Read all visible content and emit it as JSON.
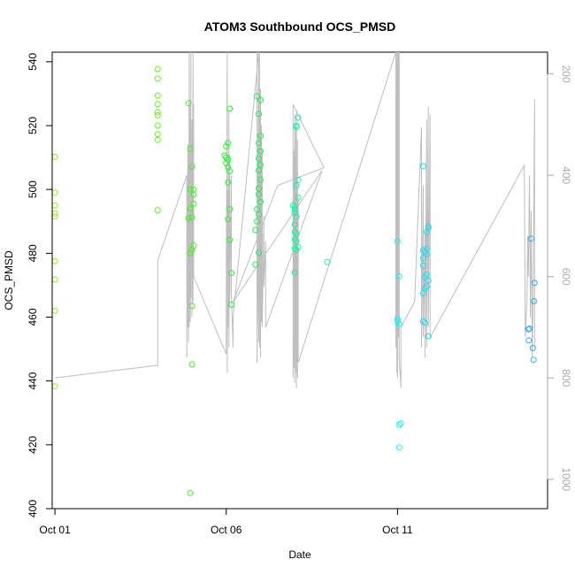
{
  "chart_data": {
    "type": "scatter",
    "title": "ATOM3 Southbound OCS_PMSD",
    "xlabel": "Date",
    "ylabel": "OCS_PMSD",
    "x_ticks": [
      {
        "day": 1,
        "label": "Oct 01"
      },
      {
        "day": 6,
        "label": "Oct 06"
      },
      {
        "day": 11,
        "label": "Oct 11"
      }
    ],
    "xlim": [
      0.92,
      15.38
    ],
    "ylim": [
      400,
      543
    ],
    "y_ticks": [
      400,
      420,
      440,
      460,
      480,
      500,
      520,
      540
    ],
    "y2_ticks": [
      200,
      400,
      600,
      800,
      1000
    ],
    "y2lim": [
      1058,
      157
    ],
    "y2_reversed": true,
    "grid": false,
    "legend": "none",
    "colors": {
      "line": "#bebebe",
      "right_axis": "#aaaaaa",
      "axis": "#000000"
    },
    "series": [
      {
        "color": "#9ae62a",
        "points": [
          [
            1.0,
            510.2
          ],
          [
            1.0,
            499.0
          ],
          [
            1.0,
            495.0
          ],
          [
            1.0,
            492.5
          ],
          [
            1.0,
            491.5
          ],
          [
            1.0,
            477.5
          ],
          [
            1.0,
            471.8
          ],
          [
            1.0,
            462.0
          ],
          [
            1.0,
            438.3
          ]
        ]
      },
      {
        "color": "#66ee22",
        "points": [
          [
            4.0,
            537.7
          ],
          [
            4.0,
            534.7
          ],
          [
            4.0,
            529.4
          ],
          [
            4.0,
            526.7
          ],
          [
            4.0,
            524.2
          ],
          [
            4.0,
            523.2
          ],
          [
            4.0,
            520.0
          ],
          [
            4.0,
            517.3
          ],
          [
            4.0,
            515.5
          ],
          [
            4.0,
            493.5
          ]
        ]
      },
      {
        "color": "#44ee22",
        "points": [
          [
            4.9,
            527.0
          ],
          [
            4.95,
            512.7
          ],
          [
            5.0,
            507.1
          ],
          [
            4.95,
            500.0
          ],
          [
            5.05,
            500.0
          ],
          [
            5.05,
            498.4
          ],
          [
            4.95,
            494.0
          ],
          [
            5.05,
            495.5
          ],
          [
            4.9,
            491.0
          ],
          [
            5.0,
            491.3
          ],
          [
            5.05,
            482.4
          ],
          [
            5.0,
            481.0
          ],
          [
            4.95,
            480.0
          ],
          [
            5.0,
            463.5
          ],
          [
            5.0,
            445.2
          ],
          [
            4.95,
            404.9
          ]
        ]
      },
      {
        "color": "#33ee33",
        "points": [
          [
            6.1,
            525.3
          ],
          [
            6.05,
            514.5
          ],
          [
            6.0,
            513.5
          ],
          [
            5.95,
            510.6
          ],
          [
            6.0,
            510.0
          ],
          [
            6.05,
            509.3
          ],
          [
            6.0,
            508.3
          ],
          [
            6.05,
            507.0
          ],
          [
            6.1,
            505.7
          ],
          [
            6.05,
            502.2
          ],
          [
            6.1,
            493.8
          ],
          [
            6.05,
            490.7
          ],
          [
            6.1,
            484.2
          ],
          [
            6.15,
            473.8
          ],
          [
            6.15,
            463.9
          ]
        ]
      },
      {
        "color": "#22ee55",
        "points": [
          [
            6.9,
            529.2
          ],
          [
            7.0,
            528.0
          ],
          [
            6.95,
            523.7
          ],
          [
            7.0,
            516.8
          ],
          [
            6.95,
            514.5
          ],
          [
            7.0,
            512.0
          ],
          [
            6.95,
            509.7
          ],
          [
            7.0,
            507.7
          ],
          [
            6.95,
            506.0
          ],
          [
            6.95,
            500.3
          ],
          [
            6.95,
            498.5
          ],
          [
            7.0,
            496.1
          ],
          [
            6.9,
            493.8
          ],
          [
            6.95,
            492.2
          ],
          [
            6.9,
            490.0
          ],
          [
            6.85,
            487.3
          ],
          [
            6.95,
            480.2
          ],
          [
            6.85,
            476.5
          ],
          [
            7.0,
            503.0
          ]
        ]
      },
      {
        "color": "#22eea0",
        "points": [
          [
            8.1,
            522.5
          ],
          [
            8.05,
            520.0
          ],
          [
            8.05,
            519.5
          ],
          [
            8.1,
            503.0
          ],
          [
            8.05,
            501.2
          ],
          [
            8.1,
            497.5
          ],
          [
            7.95,
            495.0
          ],
          [
            8.0,
            494.7
          ],
          [
            8.0,
            493.8
          ],
          [
            8.0,
            492.7
          ],
          [
            8.05,
            491.5
          ],
          [
            8.0,
            489.0
          ],
          [
            8.0,
            486.7
          ],
          [
            8.05,
            486.1
          ],
          [
            8.0,
            484.5
          ],
          [
            8.05,
            483.8
          ],
          [
            8.0,
            481.5
          ],
          [
            8.1,
            482.0
          ],
          [
            8.05,
            481.0
          ],
          [
            8.0,
            474.0
          ],
          [
            8.95,
            477.3
          ]
        ]
      },
      {
        "color": "#22eeee",
        "points": [
          [
            11.0,
            483.8
          ],
          [
            11.05,
            472.8
          ],
          [
            11.0,
            459.5
          ],
          [
            11.0,
            458.7
          ],
          [
            11.05,
            457.9
          ],
          [
            11.05,
            426.3
          ],
          [
            11.1,
            426.7
          ],
          [
            11.05,
            419.2
          ]
        ]
      },
      {
        "color": "#22ddee",
        "points": [
          [
            11.75,
            507.3
          ],
          [
            11.9,
            488.5
          ],
          [
            11.9,
            487.8
          ],
          [
            11.85,
            486.7
          ],
          [
            11.85,
            481.4
          ],
          [
            11.75,
            481.0
          ],
          [
            11.8,
            480.4
          ],
          [
            11.85,
            479.8
          ],
          [
            11.75,
            478.5
          ],
          [
            11.75,
            476.1
          ],
          [
            11.85,
            473.3
          ],
          [
            11.8,
            472.5
          ],
          [
            11.9,
            471.5
          ],
          [
            11.85,
            469.6
          ],
          [
            11.8,
            469.0
          ],
          [
            11.75,
            467.5
          ],
          [
            11.75,
            458.7
          ],
          [
            11.8,
            458.2
          ],
          [
            11.9,
            454.0
          ]
        ]
      },
      {
        "color": "#33aaee",
        "points": [
          [
            14.9,
            484.6
          ],
          [
            15.0,
            470.7
          ],
          [
            14.98,
            465.0
          ],
          [
            14.85,
            456.4
          ],
          [
            14.82,
            456.2
          ],
          [
            14.83,
            452.7
          ],
          [
            14.95,
            450.3
          ],
          [
            14.97,
            446.6
          ]
        ]
      }
    ],
    "trace_right_axis": [
      [
        1.0,
        800
      ],
      [
        4.0,
        775
      ],
      [
        4.0,
        768
      ],
      [
        4.0,
        750
      ],
      [
        4.0,
        612
      ],
      [
        4.0,
        568
      ],
      [
        4.85,
        400
      ],
      [
        4.85,
        760
      ],
      [
        4.88,
        338
      ],
      [
        4.88,
        700
      ],
      [
        4.9,
        350
      ],
      [
        4.9,
        730
      ],
      [
        4.92,
        157
      ],
      [
        4.92,
        700
      ],
      [
        4.95,
        250
      ],
      [
        4.95,
        690
      ],
      [
        4.97,
        157
      ],
      [
        4.97,
        640
      ],
      [
        5.0,
        290
      ],
      [
        5.0,
        680
      ],
      [
        5.03,
        157
      ],
      [
        5.03,
        650
      ],
      [
        5.05,
        260
      ],
      [
        5.05,
        600
      ],
      [
        6.0,
        753
      ],
      [
        6.0,
        620
      ],
      [
        6.03,
        157
      ],
      [
        6.03,
        790
      ],
      [
        6.05,
        430
      ],
      [
        6.05,
        700
      ],
      [
        6.08,
        270
      ],
      [
        6.08,
        740
      ],
      [
        6.1,
        360
      ],
      [
        6.1,
        660
      ],
      [
        6.15,
        400
      ],
      [
        6.15,
        630
      ],
      [
        6.2,
        740
      ],
      [
        6.2,
        680
      ],
      [
        6.95,
        157
      ],
      [
        6.95,
        730
      ],
      [
        6.9,
        157
      ],
      [
        6.9,
        770
      ],
      [
        6.97,
        157
      ],
      [
        6.97,
        740
      ],
      [
        7.0,
        230
      ],
      [
        7.0,
        760
      ],
      [
        7.03,
        300
      ],
      [
        7.03,
        690
      ],
      [
        7.05,
        350
      ],
      [
        7.05,
        700
      ],
      [
        7.1,
        480
      ],
      [
        7.1,
        620
      ],
      [
        7.15,
        530
      ],
      [
        7.15,
        700
      ],
      [
        8.8,
        390
      ],
      [
        6.2,
        650
      ],
      [
        7.5,
        420
      ],
      [
        8.85,
        385
      ],
      [
        7.95,
        260
      ],
      [
        7.95,
        800
      ],
      [
        7.98,
        350
      ],
      [
        7.98,
        780
      ],
      [
        8.0,
        280
      ],
      [
        8.0,
        810
      ],
      [
        8.03,
        300
      ],
      [
        8.03,
        790
      ],
      [
        8.05,
        270
      ],
      [
        8.05,
        820
      ],
      [
        8.08,
        330
      ],
      [
        8.08,
        800
      ],
      [
        8.1,
        440
      ],
      [
        8.1,
        770
      ],
      [
        10.95,
        157
      ],
      [
        10.95,
        740
      ],
      [
        10.98,
        157
      ],
      [
        10.98,
        790
      ],
      [
        11.0,
        157
      ],
      [
        11.0,
        800
      ],
      [
        11.03,
        157
      ],
      [
        11.03,
        720
      ],
      [
        11.05,
        157
      ],
      [
        11.05,
        760
      ],
      [
        11.1,
        820
      ],
      [
        11.1,
        700
      ],
      [
        11.5,
        650
      ],
      [
        11.7,
        305
      ],
      [
        11.7,
        740
      ],
      [
        11.75,
        420
      ],
      [
        11.75,
        720
      ],
      [
        11.8,
        510
      ],
      [
        11.8,
        760
      ],
      [
        11.85,
        290
      ],
      [
        11.85,
        740
      ],
      [
        11.9,
        265
      ],
      [
        11.9,
        700
      ],
      [
        11.95,
        280
      ],
      [
        11.95,
        720
      ],
      [
        14.7,
        380
      ],
      [
        14.73,
        720
      ],
      [
        14.78,
        640
      ],
      [
        14.8,
        520
      ],
      [
        14.82,
        600
      ],
      [
        14.85,
        400
      ],
      [
        14.88,
        680
      ],
      [
        14.9,
        470
      ],
      [
        14.93,
        760
      ],
      [
        14.95,
        700
      ],
      [
        14.97,
        520
      ],
      [
        15.0,
        250
      ],
      [
        15.0,
        740
      ]
    ]
  }
}
